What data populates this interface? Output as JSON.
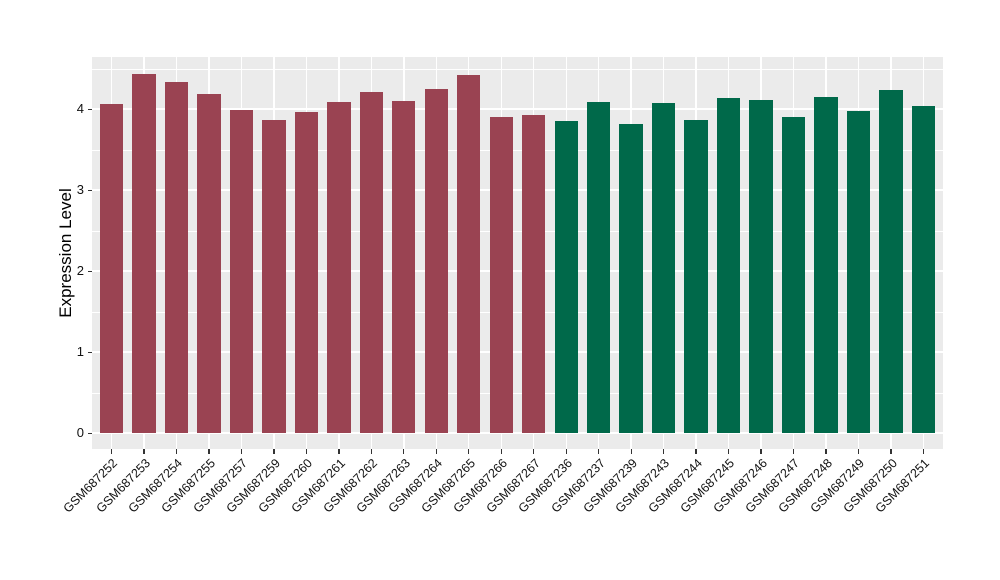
{
  "figure": {
    "background": "#FFFFFF"
  },
  "chart_data": {
    "type": "bar",
    "title": "",
    "xlabel": "",
    "ylabel": "Expression Level",
    "legend": "none",
    "grid": "on",
    "panel_bg": "#EBEBEB",
    "grid_color": "#FFFFFF",
    "tick_color": "#333333",
    "text_color": "#111111",
    "palette": {
      "group1": "#9A4352",
      "group2": "#00694A"
    },
    "y_ticks": [
      0,
      1,
      2,
      3,
      4
    ],
    "y_minor_ticks": [
      0.5,
      1.5,
      2.5,
      3.5,
      4.5
    ],
    "ylim": [
      0,
      4.43
    ],
    "ylim_display": [
      -0.21,
      4.65
    ],
    "categories": [
      "GSM687252",
      "GSM687253",
      "GSM687254",
      "GSM687255",
      "GSM687257",
      "GSM687259",
      "GSM687260",
      "GSM687261",
      "GSM687262",
      "GSM687263",
      "GSM687264",
      "GSM687265",
      "GSM687266",
      "GSM687267",
      "GSM687236",
      "GSM687237",
      "GSM687239",
      "GSM687243",
      "GSM687244",
      "GSM687245",
      "GSM687246",
      "GSM687247",
      "GSM687248",
      "GSM687249",
      "GSM687250",
      "GSM687251"
    ],
    "values": [
      4.06,
      4.43,
      4.33,
      4.18,
      3.99,
      3.87,
      3.96,
      4.09,
      4.21,
      4.1,
      4.25,
      4.42,
      3.9,
      3.93,
      3.85,
      4.09,
      3.82,
      4.07,
      3.86,
      4.13,
      4.11,
      3.9,
      4.15,
      3.97,
      4.24,
      4.04
    ],
    "bar_groups": [
      "group1",
      "group1",
      "group1",
      "group1",
      "group1",
      "group1",
      "group1",
      "group1",
      "group1",
      "group1",
      "group1",
      "group1",
      "group1",
      "group1",
      "group2",
      "group2",
      "group2",
      "group2",
      "group2",
      "group2",
      "group2",
      "group2",
      "group2",
      "group2",
      "group2",
      "group2"
    ]
  }
}
